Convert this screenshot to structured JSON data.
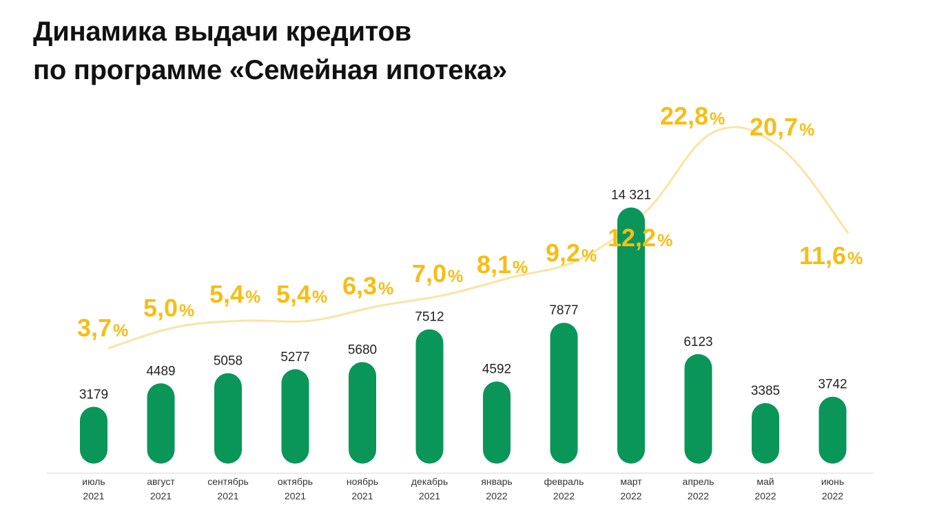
{
  "title": {
    "line1": "Динамика выдачи кредитов",
    "line2": "по программе «Семейная ипотека»"
  },
  "colors": {
    "bar": "#0a9659",
    "line": "#fce3a2",
    "percent": "#f7bd13",
    "axis": "#d6d6d6"
  },
  "chart_data": {
    "type": "bar",
    "categories": [
      [
        "июль",
        "2021"
      ],
      [
        "август",
        "2021"
      ],
      [
        "сентябрь",
        "2021"
      ],
      [
        "октябрь",
        "2021"
      ],
      [
        "ноябрь",
        "2021"
      ],
      [
        "декабрь",
        "2021"
      ],
      [
        "январь",
        "2022"
      ],
      [
        "февраль",
        "2022"
      ],
      [
        "март",
        "2022"
      ],
      [
        "апрель",
        "2022"
      ],
      [
        "май",
        "2022"
      ],
      [
        "июнь",
        "2022"
      ]
    ],
    "series": [
      {
        "type": "bar",
        "values": [
          3179,
          4489,
          5058,
          5277,
          5680,
          7512,
          4592,
          7877,
          14321,
          6123,
          3385,
          3742
        ],
        "labels": [
          "3179",
          "4489",
          "5058",
          "5277",
          "5680",
          "7512",
          "4592",
          "7877",
          "14 321",
          "6123",
          "3385",
          "3742"
        ]
      },
      {
        "type": "line",
        "unit": "%",
        "values": [
          3.7,
          5.0,
          5.4,
          5.4,
          6.3,
          7.0,
          8.1,
          9.2,
          12.2,
          22.8,
          20.7,
          11.6
        ],
        "labels": [
          "3,7",
          "5,0",
          "5,4",
          "5,4",
          "6,3",
          "7,0",
          "8,1",
          "9,2",
          "12,2",
          "22,8",
          "20,7",
          "11,6"
        ]
      }
    ],
    "legend": "none",
    "grid": false
  }
}
